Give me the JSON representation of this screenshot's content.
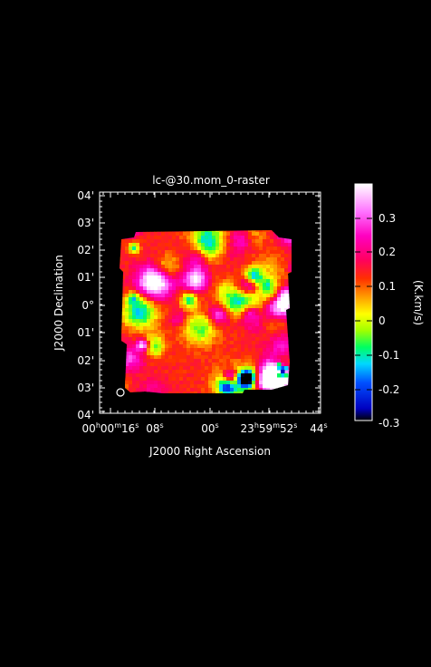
{
  "figure": {
    "title": "lc-@30.mom_0-raster",
    "x_axis_label": "J2000 Right Ascension",
    "y_axis_label": "J2000 Declination",
    "y_ticks": [
      "04'",
      "03'",
      "02'",
      "01'",
      "0°",
      "01'",
      "02'",
      "03'",
      "04'"
    ],
    "x_ticks": [
      {
        "h": "00",
        "m": "00",
        "s": "16"
      },
      {
        "h": "",
        "m": "",
        "s": "08"
      },
      {
        "h": "",
        "m": "",
        "s": "00"
      },
      {
        "h": "23",
        "m": "59",
        "s": "52"
      },
      {
        "h": "",
        "m": "",
        "s": "44"
      }
    ],
    "beam_symbol": "circle"
  },
  "colorbar": {
    "label": "(K.km/s)",
    "ticks": [
      "0.3",
      "0.2",
      "0.1",
      "0",
      "-0.1",
      "-0.2",
      "-0.3"
    ],
    "range": [
      -0.3,
      0.4
    ],
    "colormap": "rainbow (black-blue-cyan-green-yellow-orange-red-magenta-white)"
  },
  "colors": {
    "background": "#000000",
    "foreground": "#ffffff"
  }
}
